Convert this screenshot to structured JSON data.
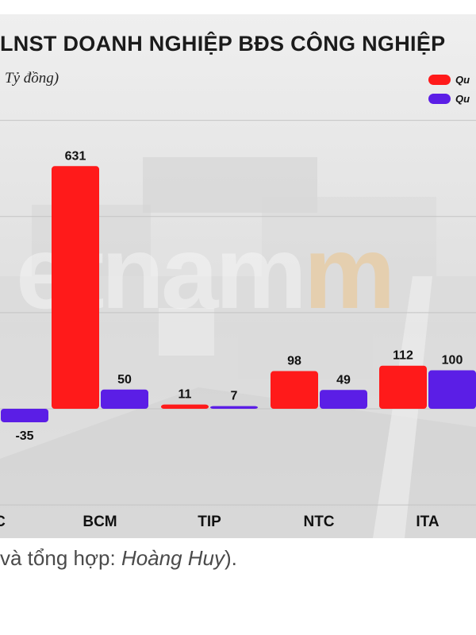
{
  "chart_data": {
    "type": "bar",
    "title": "LNST DOANH NGHIỆP BĐS CÔNG NGHIỆP",
    "subtitle": "Tỷ đồng)",
    "categories": [
      "C",
      "BCM",
      "TIP",
      "NTC",
      "ITA"
    ],
    "series": [
      {
        "name": "Qu",
        "color": "#ff1a1a",
        "values": [
          null,
          631,
          11,
          98,
          112
        ]
      },
      {
        "name": "Qu",
        "color": "#5b1ee6",
        "values": [
          -35,
          50,
          7,
          49,
          100
        ]
      }
    ],
    "ylim": [
      -100,
      800
    ],
    "grid": true,
    "legend_position": "top-right"
  },
  "watermark": {
    "text": "etnam",
    "accent": "m"
  },
  "caption": {
    "prefix": "và tổng hợp: ",
    "author": "Hoàng Huy",
    "suffix": ")."
  }
}
